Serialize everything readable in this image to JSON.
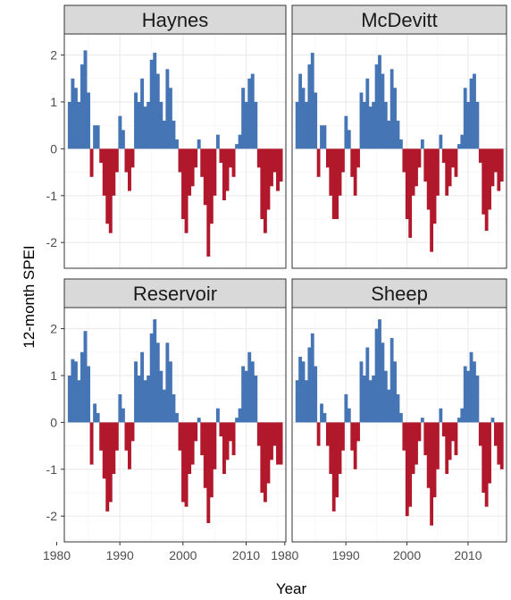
{
  "chart_data": {
    "type": "bar",
    "facet_layout": "2x2",
    "xlabel": "Year",
    "ylabel": "12-month SPEI",
    "xlim": [
      1981.2,
      2016.3
    ],
    "ylim": [
      -2.55,
      2.45
    ],
    "x_ticks": [
      1980,
      1990,
      2000,
      2010
    ],
    "y_ticks": [
      -2,
      -1,
      0,
      1,
      2
    ],
    "grid": true,
    "colors": {
      "positive": "#4575b4",
      "negative": "#b2182b",
      "strip_bg": "#d9d9d9",
      "grid": "#ebebeb"
    },
    "panels": [
      {
        "title": "Haynes",
        "x": [
          1982.0,
          1982.5,
          1983.0,
          1983.5,
          1984.0,
          1984.5,
          1985.0,
          1985.5,
          1986.0,
          1986.5,
          1987.0,
          1987.5,
          1988.0,
          1988.5,
          1989.0,
          1989.5,
          1990.0,
          1990.5,
          1991.0,
          1991.5,
          1992.0,
          1992.5,
          1993.0,
          1993.5,
          1994.0,
          1994.5,
          1995.0,
          1995.5,
          1996.0,
          1996.5,
          1997.0,
          1997.5,
          1998.0,
          1998.5,
          1999.0,
          1999.5,
          2000.0,
          2000.5,
          2001.0,
          2001.5,
          2002.0,
          2002.5,
          2003.0,
          2003.5,
          2004.0,
          2004.5,
          2005.0,
          2005.5,
          2006.0,
          2006.5,
          2007.0,
          2007.5,
          2008.0,
          2008.5,
          2009.0,
          2009.5,
          2010.0,
          2010.5,
          2011.0,
          2011.5,
          2012.0,
          2012.5,
          2013.0,
          2013.5,
          2014.0,
          2014.5,
          2015.0,
          2015.5
        ],
        "values": [
          1.0,
          1.5,
          1.3,
          1.0,
          1.8,
          2.1,
          1.2,
          -0.6,
          0.5,
          0.5,
          -0.3,
          -1.0,
          -1.6,
          -1.8,
          -1.0,
          -0.5,
          0.7,
          0.4,
          -0.5,
          -0.9,
          -0.4,
          1.2,
          1.0,
          1.5,
          0.9,
          1.0,
          1.9,
          2.05,
          1.6,
          1.0,
          0.6,
          1.7,
          1.3,
          0.6,
          0.2,
          -0.5,
          -1.5,
          -1.8,
          -1.0,
          -0.8,
          -0.4,
          0.2,
          -0.6,
          -1.2,
          -2.3,
          -1.6,
          -1.0,
          0.3,
          -0.3,
          -1.1,
          -0.9,
          -0.4,
          -0.6,
          0.1,
          0.3,
          1.3,
          1.0,
          1.5,
          1.6,
          1.0,
          -0.4,
          -1.5,
          -1.8,
          -1.3,
          -0.8,
          -0.5,
          -0.9,
          -0.7
        ]
      },
      {
        "title": "McDevitt",
        "x": [
          1982.0,
          1982.5,
          1983.0,
          1983.5,
          1984.0,
          1984.5,
          1985.0,
          1985.5,
          1986.0,
          1986.5,
          1987.0,
          1987.5,
          1988.0,
          1988.5,
          1989.0,
          1989.5,
          1990.0,
          1990.5,
          1991.0,
          1991.5,
          1992.0,
          1992.5,
          1993.0,
          1993.5,
          1994.0,
          1994.5,
          1995.0,
          1995.5,
          1996.0,
          1996.5,
          1997.0,
          1997.5,
          1998.0,
          1998.5,
          1999.0,
          1999.5,
          2000.0,
          2000.5,
          2001.0,
          2001.5,
          2002.0,
          2002.5,
          2003.0,
          2003.5,
          2004.0,
          2004.5,
          2005.0,
          2005.5,
          2006.0,
          2006.5,
          2007.0,
          2007.5,
          2008.0,
          2008.5,
          2009.0,
          2009.5,
          2010.0,
          2010.5,
          2011.0,
          2011.5,
          2012.0,
          2012.5,
          2013.0,
          2013.5,
          2014.0,
          2014.5,
          2015.0,
          2015.5
        ],
        "values": [
          1.0,
          1.6,
          1.3,
          1.0,
          1.8,
          2.05,
          1.2,
          -0.6,
          0.5,
          0.5,
          -0.4,
          -1.0,
          -1.5,
          -1.5,
          -1.0,
          -0.5,
          0.7,
          0.4,
          -0.6,
          -1.0,
          -0.4,
          1.2,
          1.0,
          1.5,
          0.9,
          1.0,
          1.8,
          2.0,
          1.6,
          1.0,
          0.6,
          1.7,
          1.3,
          0.6,
          0.2,
          -0.5,
          -1.5,
          -1.9,
          -1.0,
          -0.8,
          -0.4,
          0.2,
          -0.7,
          -1.3,
          -2.2,
          -1.6,
          -1.0,
          0.3,
          -0.3,
          -1.0,
          -0.8,
          -0.4,
          -0.6,
          0.1,
          0.3,
          1.3,
          1.0,
          1.5,
          1.6,
          1.0,
          -0.3,
          -1.4,
          -1.75,
          -1.3,
          -0.8,
          -0.5,
          -0.9,
          -0.7
        ]
      },
      {
        "title": "Reservoir",
        "x": [
          1982.0,
          1982.5,
          1983.0,
          1983.5,
          1984.0,
          1984.5,
          1985.0,
          1985.5,
          1986.0,
          1986.5,
          1987.0,
          1987.5,
          1988.0,
          1988.5,
          1989.0,
          1989.5,
          1990.0,
          1990.5,
          1991.0,
          1991.5,
          1992.0,
          1992.5,
          1993.0,
          1993.5,
          1994.0,
          1994.5,
          1995.0,
          1995.5,
          1996.0,
          1996.5,
          1997.0,
          1997.5,
          1998.0,
          1998.5,
          1999.0,
          1999.5,
          2000.0,
          2000.5,
          2001.0,
          2001.5,
          2002.0,
          2002.5,
          2003.0,
          2003.5,
          2004.0,
          2004.5,
          2005.0,
          2005.5,
          2006.0,
          2006.5,
          2007.0,
          2007.5,
          2008.0,
          2008.5,
          2009.0,
          2009.5,
          2010.0,
          2010.5,
          2011.0,
          2011.5,
          2012.0,
          2012.5,
          2013.0,
          2013.5,
          2014.0,
          2014.5,
          2015.0,
          2015.5
        ],
        "values": [
          1.0,
          1.35,
          1.3,
          0.9,
          1.5,
          1.95,
          1.2,
          -0.9,
          0.4,
          0.2,
          -0.6,
          -1.2,
          -1.9,
          -1.7,
          -1.1,
          -0.6,
          0.6,
          0.3,
          -0.6,
          -1.0,
          -0.4,
          1.3,
          1.0,
          1.5,
          0.9,
          1.0,
          1.9,
          2.2,
          1.7,
          1.1,
          0.7,
          1.7,
          1.3,
          0.6,
          0.2,
          -0.6,
          -1.7,
          -1.8,
          -1.1,
          -0.9,
          -0.4,
          0.1,
          -0.7,
          -1.4,
          -2.15,
          -1.6,
          -1.0,
          0.3,
          -0.3,
          -1.1,
          -0.8,
          -0.4,
          -0.7,
          0.1,
          0.3,
          1.2,
          1.1,
          1.5,
          1.3,
          1.0,
          -0.5,
          -1.5,
          -1.7,
          -1.3,
          -0.8,
          -0.5,
          -0.9,
          -0.9
        ]
      },
      {
        "title": "Sheep",
        "x": [
          1982.0,
          1982.5,
          1983.0,
          1983.5,
          1984.0,
          1984.5,
          1985.0,
          1985.5,
          1986.0,
          1986.5,
          1987.0,
          1987.5,
          1988.0,
          1988.5,
          1989.0,
          1989.5,
          1990.0,
          1990.5,
          1991.0,
          1991.5,
          1992.0,
          1992.5,
          1993.0,
          1993.5,
          1994.0,
          1994.5,
          1995.0,
          1995.5,
          1996.0,
          1996.5,
          1997.0,
          1997.5,
          1998.0,
          1998.5,
          1999.0,
          1999.5,
          2000.0,
          2000.5,
          2001.0,
          2001.5,
          2002.0,
          2002.5,
          2003.0,
          2003.5,
          2004.0,
          2004.5,
          2005.0,
          2005.5,
          2006.0,
          2006.5,
          2007.0,
          2007.5,
          2008.0,
          2008.5,
          2009.0,
          2009.5,
          2010.0,
          2010.5,
          2011.0,
          2011.5,
          2012.0,
          2012.5,
          2013.0,
          2013.5,
          2014.0,
          2014.5,
          2015.0,
          2015.5
        ],
        "values": [
          0.9,
          1.4,
          1.3,
          0.9,
          1.6,
          1.9,
          1.2,
          -0.5,
          0.4,
          0.2,
          -0.5,
          -1.1,
          -1.9,
          -1.6,
          -1.1,
          -0.6,
          0.6,
          0.3,
          -0.6,
          -1.0,
          -0.4,
          1.3,
          1.0,
          1.6,
          0.9,
          1.0,
          2.0,
          2.2,
          1.7,
          1.1,
          0.7,
          1.8,
          1.3,
          0.6,
          0.2,
          -0.6,
          -2.0,
          -1.8,
          -1.1,
          -0.9,
          -0.4,
          0.1,
          -0.7,
          -1.4,
          -2.2,
          -1.6,
          -1.0,
          0.3,
          -0.3,
          -1.1,
          -0.8,
          -0.4,
          -0.7,
          0.1,
          0.3,
          1.2,
          1.1,
          1.5,
          1.3,
          1.0,
          -0.5,
          -1.5,
          -1.8,
          -1.3,
          0.1,
          -0.5,
          -0.9,
          -1.0
        ]
      }
    ]
  }
}
